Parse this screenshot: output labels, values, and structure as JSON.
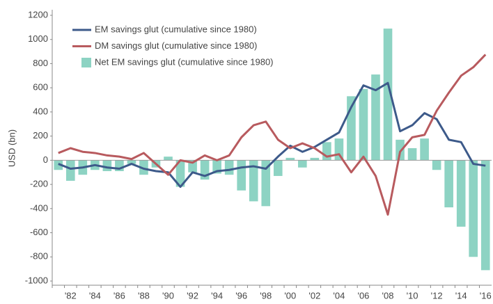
{
  "chart_data": {
    "type": "bar_line",
    "y_label": "USD (bn)",
    "categories": [
      null,
      "'82",
      null,
      "'84",
      null,
      "'86",
      null,
      "'88",
      null,
      "'90",
      null,
      "'92",
      null,
      "'94",
      null,
      "'96",
      null,
      "'98",
      null,
      "'00",
      null,
      "'02",
      null,
      "'04",
      null,
      "'06",
      null,
      "'08",
      null,
      "'10",
      null,
      "'12",
      null,
      "'14",
      null,
      "'16"
    ],
    "series": [
      {
        "name": "EM savings glut (cumulative since 1980)",
        "type": "line",
        "color": "#3d5a8a",
        "values": [
          -30,
          -70,
          -60,
          -40,
          -60,
          -70,
          -30,
          -70,
          -90,
          -100,
          -220,
          -100,
          -130,
          -90,
          -80,
          -60,
          -50,
          -70,
          30,
          120,
          70,
          110,
          170,
          230,
          440,
          620,
          580,
          640,
          240,
          290,
          390,
          340,
          170,
          150,
          -30,
          -45
        ]
      },
      {
        "name": "DM savings glut (cumulative since 1980)",
        "type": "line",
        "color": "#b85a5e",
        "values": [
          60,
          100,
          70,
          60,
          40,
          30,
          10,
          60,
          -30,
          -120,
          0,
          -20,
          40,
          0,
          40,
          190,
          290,
          320,
          170,
          100,
          140,
          100,
          30,
          50,
          -100,
          30,
          -130,
          -450,
          70,
          190,
          210,
          410,
          560,
          700,
          770,
          875
        ]
      },
      {
        "name": "Net EM savings glut (cumulative since 1980)",
        "type": "bar",
        "color": "#8dd3c3",
        "values": [
          -80,
          -170,
          -120,
          -80,
          -90,
          -90,
          -30,
          -120,
          -60,
          30,
          -220,
          -100,
          -160,
          -110,
          -120,
          -250,
          -340,
          -380,
          -130,
          20,
          -60,
          20,
          150,
          180,
          530,
          590,
          710,
          1090,
          170,
          100,
          180,
          -80,
          -390,
          -550,
          -800,
          -910
        ]
      }
    ],
    "ylim": [
      -1000,
      1200
    ],
    "yticks": [
      -1000,
      -800,
      -600,
      -400,
      -200,
      0,
      200,
      400,
      600,
      800,
      1000,
      1200
    ],
    "grid": false
  }
}
